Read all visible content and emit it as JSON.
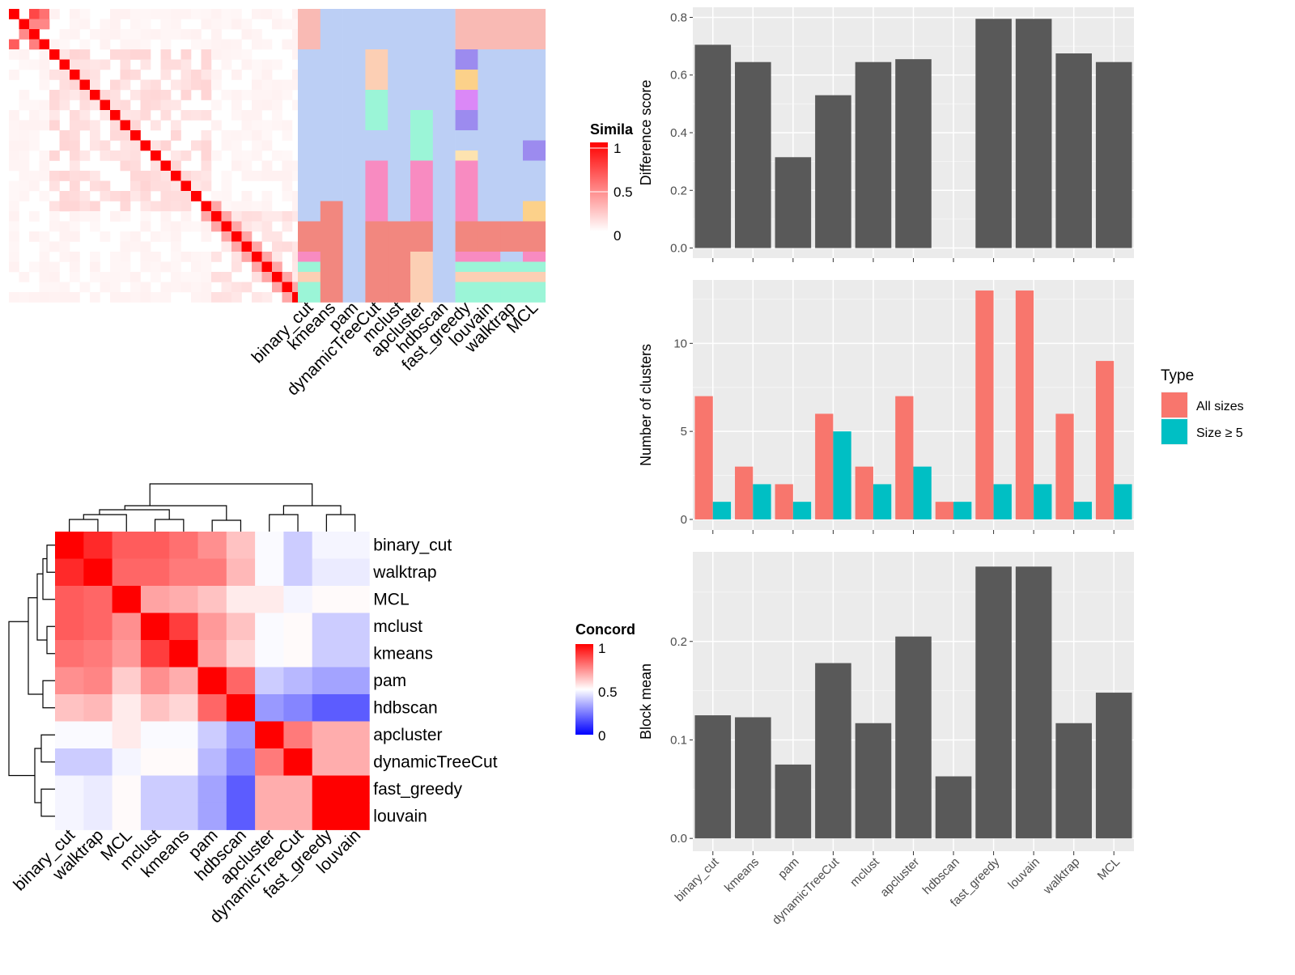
{
  "chart_data": [
    {
      "type": "heatmap",
      "name": "similarity-matrix-with-cluster-assignments",
      "legend_title": "Simila",
      "legend_ticks": [
        "1",
        "0.5",
        "0"
      ],
      "legend_colors": [
        "#ff0000",
        "#ffffff"
      ],
      "column_labels": [
        "binary_cut",
        "kmeans",
        "pam",
        "dynamicTreeCut",
        "mclust",
        "apcluster",
        "hdbscan",
        "fast_greedy",
        "louvain",
        "walktrap",
        "MCL"
      ],
      "n_terms": 29,
      "diagonal_value": 1,
      "cluster_palette": [
        "#bccff5",
        "#f9bab4",
        "#f2877f",
        "#f88bc1",
        "#9bf5d7",
        "#fccfb4",
        "#fcd18a",
        "#db88f7",
        "#9c8bef",
        "#fde3b0"
      ],
      "cluster_assignments": [
        [
          1,
          0,
          0,
          0,
          0,
          0,
          0,
          1,
          1,
          1,
          1
        ],
        [
          1,
          0,
          0,
          0,
          0,
          0,
          0,
          1,
          1,
          1,
          1
        ],
        [
          1,
          0,
          0,
          0,
          0,
          0,
          0,
          1,
          1,
          1,
          1
        ],
        [
          1,
          0,
          0,
          0,
          0,
          0,
          0,
          1,
          1,
          1,
          1
        ],
        [
          0,
          0,
          0,
          5,
          0,
          0,
          0,
          8,
          0,
          0,
          0
        ],
        [
          0,
          0,
          0,
          5,
          0,
          0,
          0,
          8,
          0,
          0,
          0
        ],
        [
          0,
          0,
          0,
          5,
          0,
          0,
          0,
          6,
          0,
          0,
          0
        ],
        [
          0,
          0,
          0,
          5,
          0,
          0,
          0,
          6,
          0,
          0,
          0
        ],
        [
          0,
          0,
          0,
          4,
          0,
          0,
          0,
          7,
          0,
          0,
          0
        ],
        [
          0,
          0,
          0,
          4,
          0,
          0,
          0,
          7,
          0,
          0,
          0
        ],
        [
          0,
          0,
          0,
          4,
          0,
          4,
          0,
          8,
          0,
          0,
          0
        ],
        [
          0,
          0,
          0,
          4,
          0,
          4,
          0,
          8,
          0,
          0,
          0
        ],
        [
          0,
          0,
          0,
          0,
          0,
          4,
          0,
          0,
          0,
          0,
          0
        ],
        [
          0,
          0,
          0,
          0,
          0,
          4,
          0,
          0,
          0,
          0,
          8
        ],
        [
          0,
          0,
          0,
          0,
          0,
          4,
          0,
          9,
          0,
          0,
          8
        ],
        [
          0,
          0,
          0,
          3,
          0,
          3,
          0,
          3,
          0,
          0,
          0
        ],
        [
          0,
          0,
          0,
          3,
          0,
          3,
          0,
          3,
          0,
          0,
          0
        ],
        [
          0,
          0,
          0,
          3,
          0,
          3,
          0,
          3,
          0,
          0,
          0
        ],
        [
          0,
          0,
          0,
          3,
          0,
          3,
          0,
          3,
          0,
          0,
          0
        ],
        [
          0,
          2,
          0,
          3,
          0,
          3,
          0,
          3,
          0,
          0,
          6
        ],
        [
          0,
          2,
          0,
          3,
          0,
          3,
          0,
          3,
          0,
          0,
          6
        ],
        [
          2,
          2,
          0,
          2,
          2,
          2,
          0,
          2,
          2,
          2,
          2
        ],
        [
          2,
          2,
          0,
          2,
          2,
          2,
          0,
          2,
          2,
          2,
          2
        ],
        [
          2,
          2,
          0,
          2,
          2,
          2,
          0,
          2,
          2,
          2,
          2
        ],
        [
          3,
          2,
          0,
          2,
          2,
          5,
          0,
          3,
          3,
          0,
          3
        ],
        [
          4,
          2,
          0,
          2,
          2,
          5,
          0,
          4,
          4,
          4,
          4
        ],
        [
          5,
          2,
          0,
          2,
          2,
          5,
          0,
          5,
          5,
          5,
          5
        ],
        [
          4,
          2,
          0,
          2,
          2,
          5,
          0,
          4,
          4,
          4,
          4
        ],
        [
          4,
          2,
          0,
          2,
          2,
          5,
          0,
          4,
          4,
          4,
          4
        ]
      ]
    },
    {
      "type": "heatmap",
      "name": "concordance-matrix",
      "legend_title": "Concord",
      "legend_ticks": [
        "1",
        "0.5",
        "0"
      ],
      "legend_colors": [
        "#ff0000",
        "#ffffff",
        "#0000ff"
      ],
      "row_labels": [
        "binary_cut",
        "walktrap",
        "MCL",
        "mclust",
        "kmeans",
        "pam",
        "hdbscan",
        "apcluster",
        "dynamicTreeCut",
        "fast_greedy",
        "louvain"
      ],
      "col_labels": [
        "binary_cut",
        "walktrap",
        "MCL",
        "mclust",
        "kmeans",
        "pam",
        "hdbscan",
        "apcluster",
        "dynamicTreeCut",
        "fast_greedy",
        "louvain"
      ],
      "values": [
        [
          1.0,
          0.92,
          0.82,
          0.82,
          0.78,
          0.72,
          0.62,
          0.49,
          0.4,
          0.48,
          0.48
        ],
        [
          0.92,
          1.0,
          0.8,
          0.8,
          0.76,
          0.76,
          0.64,
          0.49,
          0.4,
          0.46,
          0.46
        ],
        [
          0.82,
          0.8,
          1.0,
          0.68,
          0.66,
          0.62,
          0.54,
          0.54,
          0.48,
          0.51,
          0.51
        ],
        [
          0.82,
          0.8,
          0.72,
          1.0,
          0.88,
          0.7,
          0.62,
          0.49,
          0.51,
          0.4,
          0.4
        ],
        [
          0.78,
          0.76,
          0.7,
          0.88,
          1.0,
          0.68,
          0.58,
          0.49,
          0.51,
          0.4,
          0.4
        ],
        [
          0.72,
          0.74,
          0.6,
          0.72,
          0.66,
          1.0,
          0.8,
          0.4,
          0.36,
          0.32,
          0.32
        ],
        [
          0.62,
          0.64,
          0.54,
          0.62,
          0.58,
          0.8,
          1.0,
          0.3,
          0.26,
          0.18,
          0.18
        ],
        [
          0.49,
          0.49,
          0.54,
          0.49,
          0.49,
          0.4,
          0.3,
          1.0,
          0.76,
          0.66,
          0.66
        ],
        [
          0.4,
          0.4,
          0.48,
          0.51,
          0.51,
          0.36,
          0.26,
          0.76,
          1.0,
          0.66,
          0.66
        ],
        [
          0.48,
          0.46,
          0.51,
          0.4,
          0.4,
          0.32,
          0.18,
          0.66,
          0.66,
          1.0,
          1.0
        ],
        [
          0.48,
          0.46,
          0.51,
          0.4,
          0.4,
          0.32,
          0.18,
          0.66,
          0.66,
          1.0,
          1.0
        ]
      ],
      "dendrogram": "((((((binary_cut,walktrap),MCL),(mclust,kmeans)),(pam,hdbscan)),((apcluster,dynamicTreeCut),(fast_greedy,louvain))))"
    },
    {
      "type": "bar",
      "name": "difference-score",
      "categories": [
        "binary_cut",
        "kmeans",
        "pam",
        "dynamicTreeCut",
        "mclust",
        "apcluster",
        "hdbscan",
        "fast_greedy",
        "louvain",
        "walktrap",
        "MCL"
      ],
      "values": [
        0.705,
        0.645,
        0.315,
        0.53,
        0.645,
        0.655,
        null,
        0.795,
        0.795,
        0.675,
        0.645
      ],
      "xlabel": "",
      "ylabel": "Difference score",
      "ylim": [
        -0.035,
        0.835
      ],
      "yticks": [
        "0.0",
        "0.2",
        "0.4",
        "0.6",
        "0.8"
      ],
      "bar_color": "#595959",
      "panel_background": "#ebebeb",
      "grid": true
    },
    {
      "type": "bar",
      "name": "number-of-clusters",
      "categories": [
        "binary_cut",
        "kmeans",
        "pam",
        "dynamicTreeCut",
        "mclust",
        "apcluster",
        "hdbscan",
        "fast_greedy",
        "louvain",
        "walktrap",
        "MCL"
      ],
      "series": [
        {
          "name": "All sizes",
          "values": [
            7,
            3,
            2,
            6,
            3,
            7,
            1,
            13,
            13,
            6,
            9
          ],
          "color": "#f8766d"
        },
        {
          "name": "Size ≥ 5",
          "values": [
            1,
            2,
            1,
            5,
            2,
            3,
            1,
            2,
            2,
            1,
            2
          ],
          "color": "#00bfc4"
        }
      ],
      "xlabel": "",
      "ylabel": "Number of clusters",
      "ylim": [
        -0.6,
        13.6
      ],
      "yticks": [
        "0",
        "5",
        "10"
      ],
      "legend_title": "Type",
      "legend_position": "right",
      "panel_background": "#ebebeb",
      "grid": true
    },
    {
      "type": "bar",
      "name": "block-mean",
      "categories": [
        "binary_cut",
        "kmeans",
        "pam",
        "dynamicTreeCut",
        "mclust",
        "apcluster",
        "hdbscan",
        "fast_greedy",
        "louvain",
        "walktrap",
        "MCL"
      ],
      "values": [
        0.125,
        0.123,
        0.075,
        0.178,
        0.117,
        0.205,
        0.063,
        0.276,
        0.276,
        0.117,
        0.148
      ],
      "xlabel": "",
      "ylabel": "Block mean",
      "ylim": [
        -0.013,
        0.291
      ],
      "yticks": [
        "0.0",
        "0.1",
        "0.2"
      ],
      "bar_color": "#595959",
      "panel_background": "#ebebeb",
      "grid": true
    }
  ]
}
